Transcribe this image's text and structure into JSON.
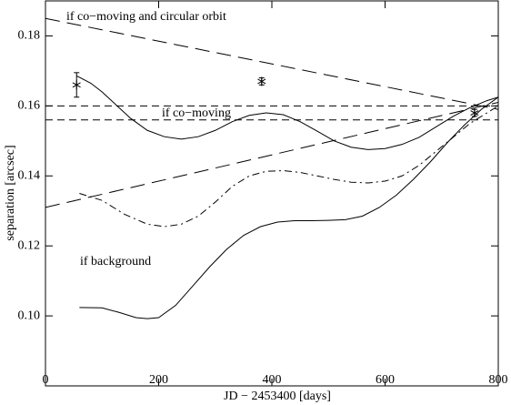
{
  "chart_data": {
    "type": "line",
    "xlabel": "JD − 2453400 [days]",
    "ylabel": "separation [arcsec]",
    "xlim": [
      0,
      800
    ],
    "xticks": [
      0,
      200,
      400,
      600,
      800
    ],
    "ylim": [
      0.08,
      0.19
    ],
    "yticks": [
      {
        "value": 0.1,
        "label": "0.10"
      },
      0.12,
      0.14,
      0.16,
      0.18
    ],
    "annotations": [
      "if co−moving and circular orbit",
      "if co−moving",
      "if background"
    ],
    "series": [
      {
        "color": "#000000",
        "dash": "long-dash",
        "x": [
          0,
          800
        ],
        "values": [
          0.185,
          0.159
        ]
      },
      {
        "color": "#000000",
        "dash": "dashed",
        "x": [
          0,
          800
        ],
        "values": [
          0.16,
          0.16
        ]
      },
      {
        "color": "#000000",
        "dash": "dashed",
        "x": [
          0,
          800
        ],
        "values": [
          0.156,
          0.156
        ]
      },
      {
        "color": "#000000",
        "dash": "long-dash",
        "x": [
          0,
          800
        ],
        "values": [
          0.131,
          0.161
        ]
      },
      {
        "color": "#000000",
        "dash": "solid",
        "x": [
          55,
          80,
          100,
          120,
          150,
          180,
          210,
          240,
          270,
          300,
          330,
          360,
          390,
          420,
          450,
          480,
          510,
          540,
          570,
          600,
          630,
          660,
          690,
          720,
          750,
          780,
          800
        ],
        "values": [
          0.1686,
          0.1665,
          0.164,
          0.161,
          0.1565,
          0.153,
          0.1512,
          0.1505,
          0.1512,
          0.153,
          0.1555,
          0.1573,
          0.158,
          0.1575,
          0.1555,
          0.1528,
          0.15,
          0.1482,
          0.1475,
          0.1478,
          0.149,
          0.151,
          0.154,
          0.157,
          0.1595,
          0.1615,
          0.1625
        ]
      },
      {
        "color": "#000000",
        "dash": "dash-dot",
        "x": [
          60,
          100,
          140,
          180,
          210,
          240,
          270,
          300,
          330,
          360,
          390,
          420,
          450,
          480,
          510,
          540,
          570,
          600,
          630,
          660,
          690,
          720,
          750,
          780,
          800
        ],
        "values": [
          0.135,
          0.133,
          0.129,
          0.1262,
          0.1255,
          0.1262,
          0.1285,
          0.1325,
          0.137,
          0.14,
          0.1413,
          0.1415,
          0.141,
          0.14,
          0.139,
          0.1382,
          0.138,
          0.1385,
          0.14,
          0.143,
          0.147,
          0.151,
          0.155,
          0.158,
          0.16
        ]
      },
      {
        "color": "#000000",
        "dash": "solid",
        "x": [
          60,
          100,
          130,
          160,
          180,
          200,
          230,
          260,
          290,
          320,
          350,
          380,
          410,
          440,
          470,
          500,
          530,
          560,
          590,
          620,
          650,
          680,
          710,
          740,
          770,
          800
        ],
        "values": [
          0.1024,
          0.1023,
          0.101,
          0.0995,
          0.0992,
          0.0995,
          0.103,
          0.1085,
          0.114,
          0.119,
          0.123,
          0.1255,
          0.1268,
          0.1272,
          0.1272,
          0.1273,
          0.1275,
          0.1285,
          0.131,
          0.1345,
          0.139,
          0.144,
          0.1495,
          0.1545,
          0.159,
          0.1625
        ]
      }
    ],
    "points": {
      "color": "#000000",
      "x": [
        55,
        382,
        758
      ],
      "values": [
        0.166,
        0.167,
        0.158
      ],
      "yerr": [
        0.0035,
        0.001,
        0.001
      ]
    }
  }
}
